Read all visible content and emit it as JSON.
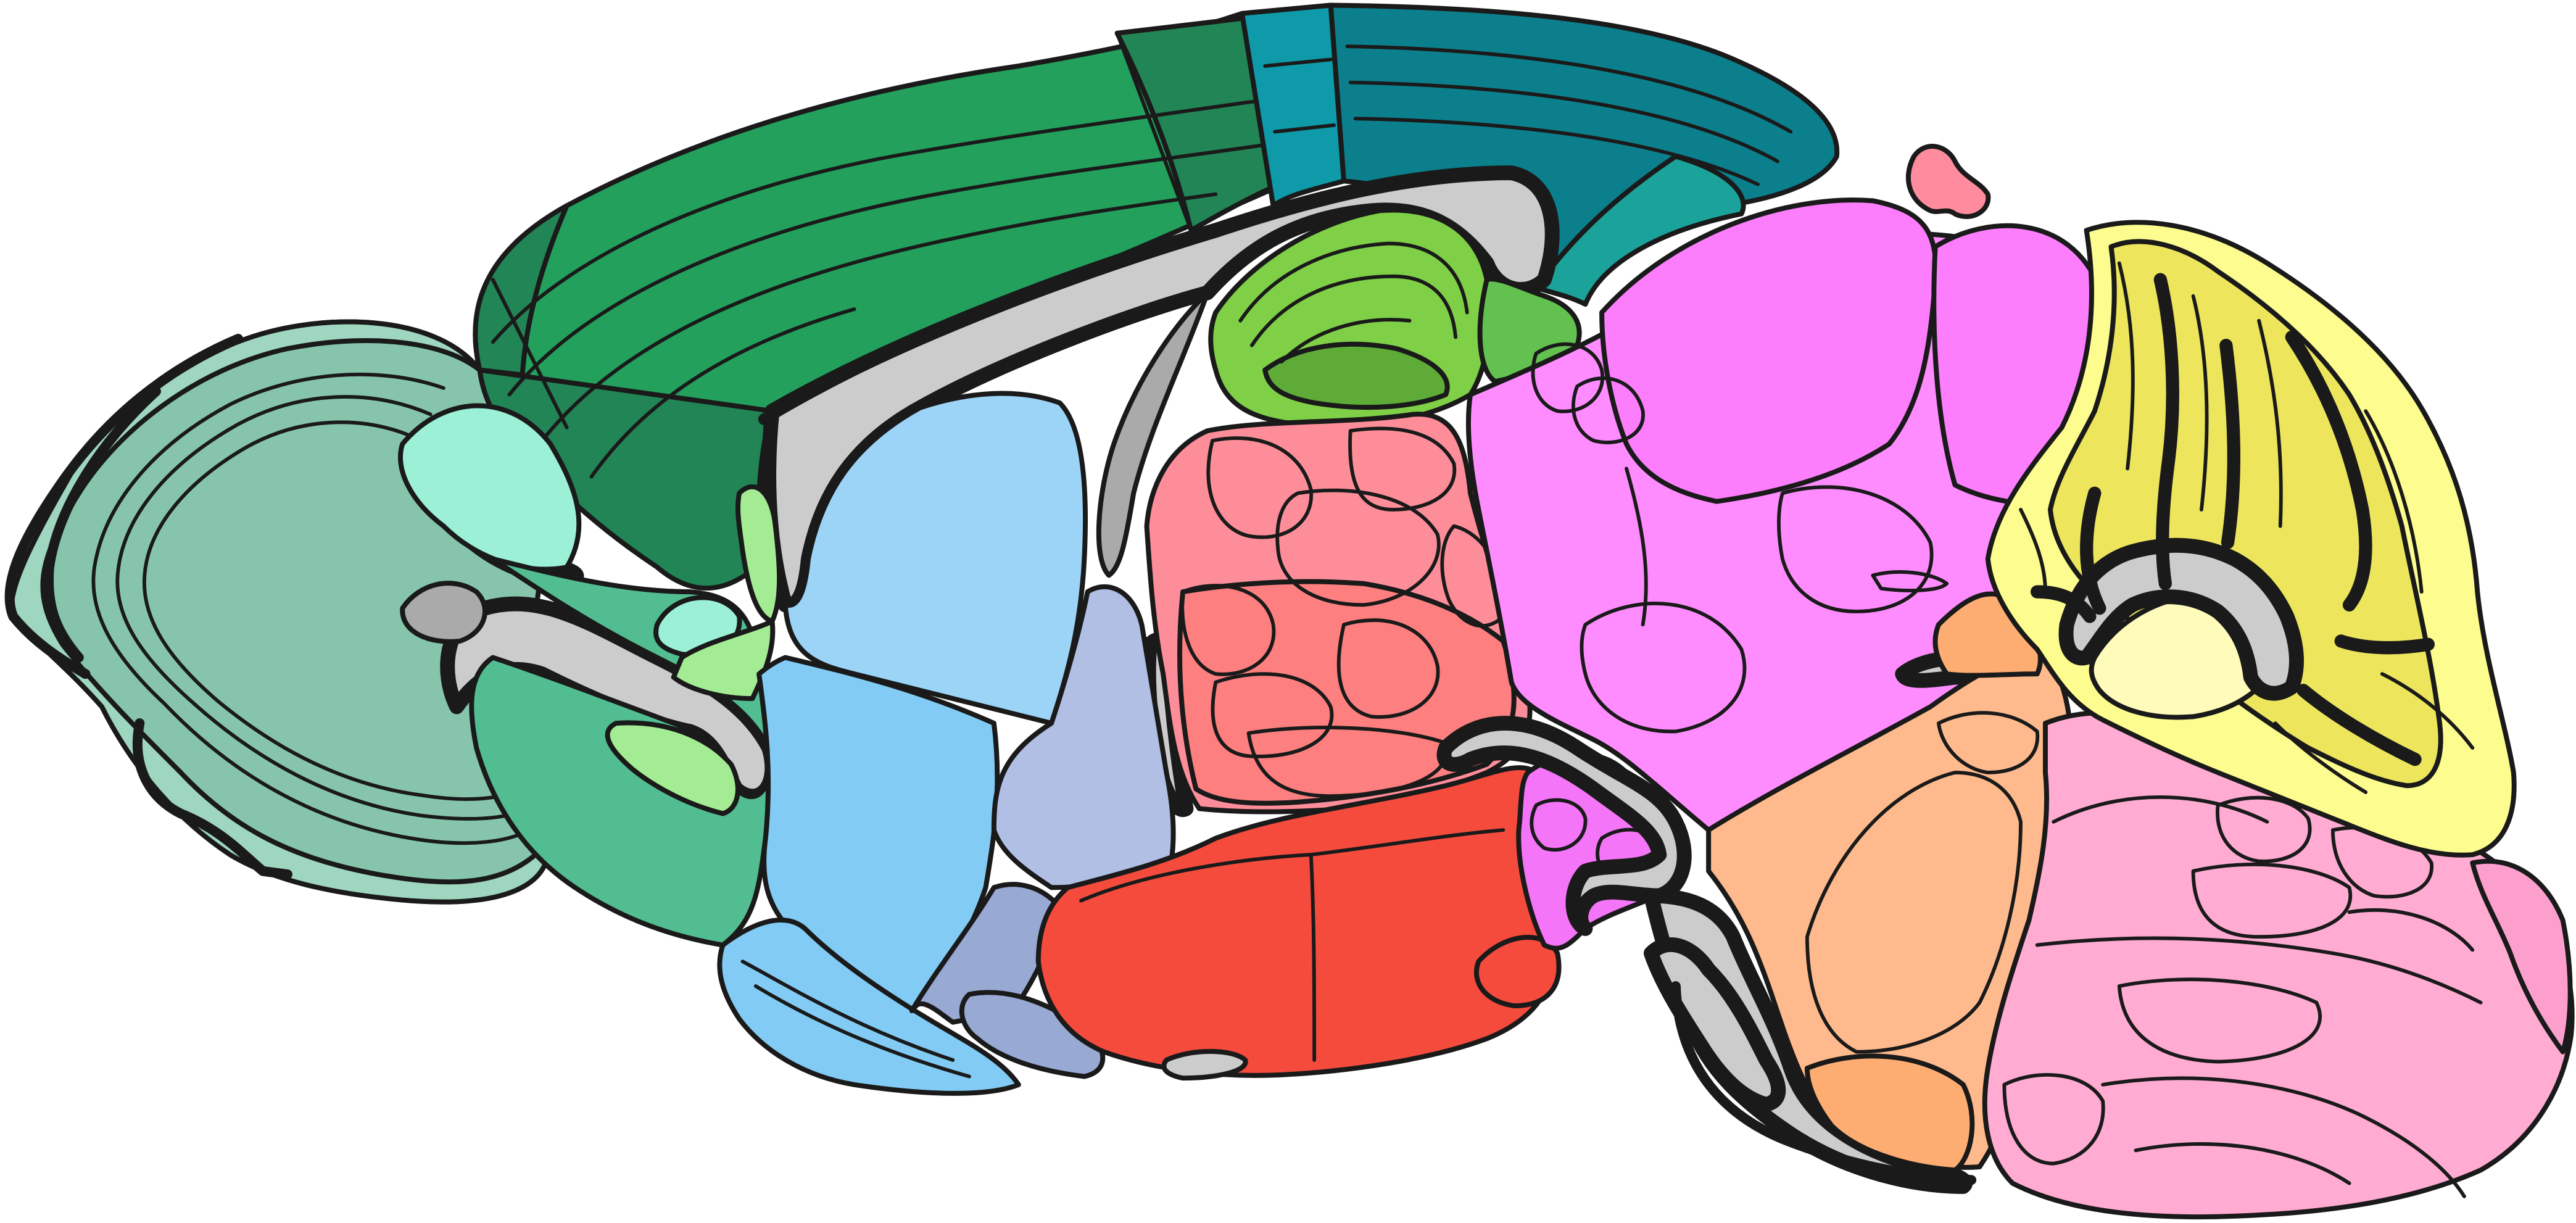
{
  "diagram": {
    "type": "brain-atlas-sagittal-section",
    "labels": [],
    "colors": {
      "olfactory": "#86c5ac",
      "olfactory_light": "#9fd6c0",
      "isocortex": "#22a05c",
      "isocortex_dark": "#228556",
      "cortex_teal": "#0e9aa8",
      "cortex_teal_dark": "#0b7f8c",
      "retrosplenial": "#1ba29a",
      "hippocampus": "#7fcf47",
      "hippocampus_dark": "#5eab37",
      "hippocampus_ca": "#63c24f",
      "olfactory_tubercle": "#9cf0d6",
      "cortical_subplate": "#52bd91",
      "light_green": "#a4ec94",
      "striatum": "#9bd4f7",
      "striatum_lower": "#82cbf5",
      "pallidum": "#b1bfe4",
      "pallidum_lower": "#98a9d4",
      "thalamus": "#fd8e99",
      "thalamus_deep": "#fd7f7f",
      "hypothalamus": "#f44b3d",
      "midbrain": "#fe8cfe",
      "midbrain_upper": "#fd7efd",
      "midbrain_bright": "#f475f7",
      "pons": "#feba8c",
      "pons_dark": "#fead72",
      "medulla": "#ffabd2",
      "medulla_dark": "#fc9fcd",
      "cerebellum": "#fdfc8e",
      "cerebellum_dark": "#ede65c",
      "cerebellum_nuclei": "#fffbbb",
      "pineal": "#fe8c9e",
      "ventricle": "#cccccc",
      "fiber_dark": "#aaaaaa",
      "outline": "#1a1a1a"
    }
  }
}
